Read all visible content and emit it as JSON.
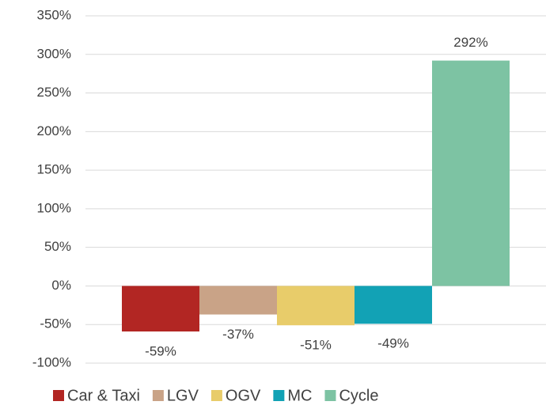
{
  "chart_data": {
    "type": "bar",
    "categories": [
      null
    ],
    "series": [
      {
        "name": "Car & Taxi",
        "color": "#b22623",
        "values": [
          -59
        ],
        "value_labels": [
          "-59%"
        ]
      },
      {
        "name": "LGV",
        "color": "#c9a387",
        "values": [
          -37
        ],
        "value_labels": [
          "-37%"
        ]
      },
      {
        "name": "OGV",
        "color": "#e8cc6a",
        "values": [
          -51
        ],
        "value_labels": [
          "-51%"
        ]
      },
      {
        "name": "MC",
        "color": "#12a2b5",
        "values": [
          -49
        ],
        "value_labels": [
          "-49%"
        ]
      },
      {
        "name": "Cycle",
        "color": "#7dc3a3",
        "values": [
          292
        ],
        "value_labels": [
          "292%"
        ]
      }
    ],
    "ylim": [
      -100,
      350
    ],
    "yticks": [
      {
        "value": -100,
        "label": "-100%"
      },
      {
        "value": -50,
        "label": "-50%"
      },
      {
        "value": 0,
        "label": "0%"
      },
      {
        "value": 50,
        "label": "50%"
      },
      {
        "value": 100,
        "label": "100%"
      },
      {
        "value": 150,
        "label": "150%"
      },
      {
        "value": 200,
        "label": "200%"
      },
      {
        "value": 250,
        "label": "250%"
      },
      {
        "value": 300,
        "label": "300%"
      },
      {
        "value": 350,
        "label": "350%"
      }
    ],
    "grid": true,
    "legend": "bottom"
  }
}
